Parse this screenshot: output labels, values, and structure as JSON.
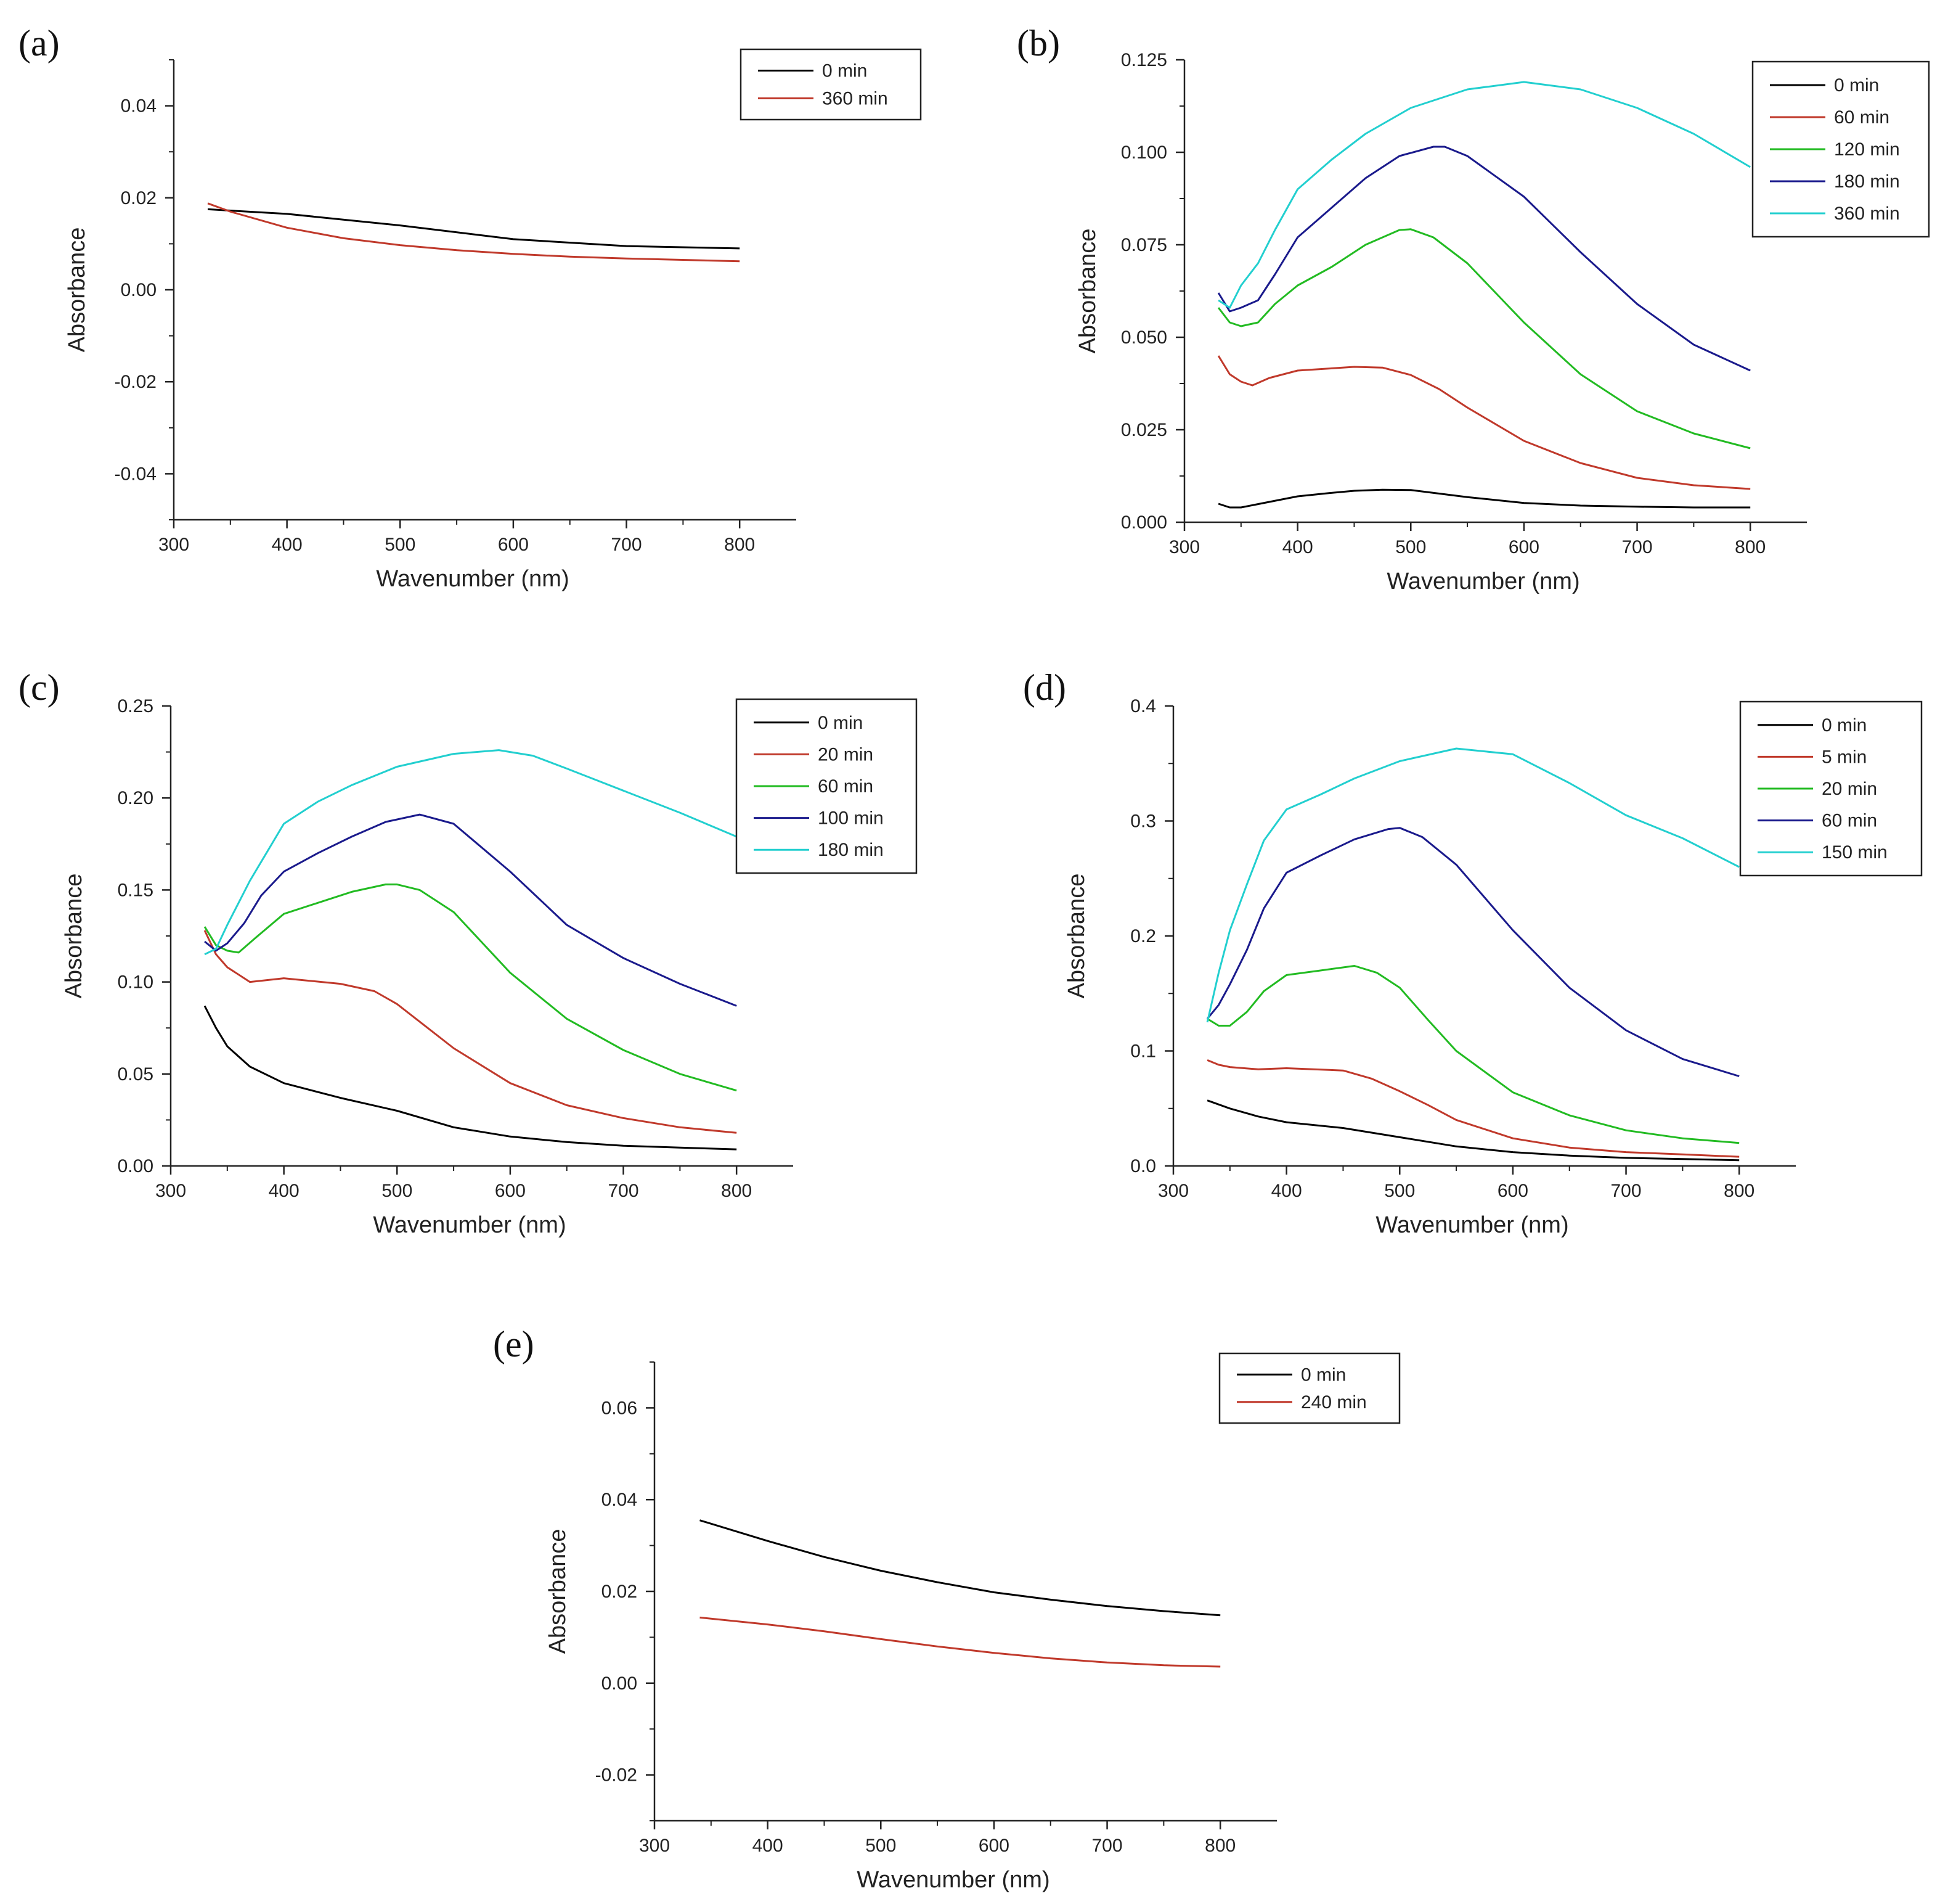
{
  "chart_data": [
    {
      "panel": "(a)",
      "type": "line",
      "xlabel": "Wavenumber (nm)",
      "ylabel": "Absorbance",
      "xlim": [
        300,
        850
      ],
      "ylim": [
        -0.05,
        0.05
      ],
      "xticks": [
        300,
        400,
        500,
        600,
        700,
        800
      ],
      "xtick_labels": [
        "300",
        "400",
        "500",
        "600",
        "700",
        "800"
      ],
      "yticks": [
        -0.04,
        -0.02,
        0,
        0.02,
        0.04
      ],
      "ytick_labels": [
        "-0.04",
        "-0.02",
        "0.00",
        "0.02",
        "0.04"
      ],
      "legend_position": "top-right",
      "series": [
        {
          "name": "0 min",
          "color": "#000000",
          "x": [
            330,
            400,
            500,
            600,
            700,
            800
          ],
          "y": [
            0.0175,
            0.0165,
            0.014,
            0.011,
            0.0095,
            0.009
          ]
        },
        {
          "name": "360 min",
          "color": "#c0392b",
          "x": [
            330,
            350,
            400,
            450,
            500,
            550,
            600,
            650,
            700,
            750,
            800
          ],
          "y": [
            0.0188,
            0.017,
            0.0135,
            0.0112,
            0.0097,
            0.0086,
            0.0078,
            0.0072,
            0.0068,
            0.0065,
            0.0062
          ]
        }
      ]
    },
    {
      "panel": "(b)",
      "type": "line",
      "xlabel": "Wavenumber (nm)",
      "ylabel": "Absorbance",
      "xlim": [
        300,
        850
      ],
      "ylim": [
        0,
        0.125
      ],
      "xticks": [
        300,
        400,
        500,
        600,
        700,
        800
      ],
      "xtick_labels": [
        "300",
        "400",
        "500",
        "600",
        "700",
        "800"
      ],
      "yticks": [
        0,
        0.025,
        0.05,
        0.075,
        0.1,
        0.125
      ],
      "ytick_labels": [
        "0.000",
        "0.025",
        "0.050",
        "0.075",
        "0.100",
        "0.125"
      ],
      "legend_position": "top-right",
      "series": [
        {
          "name": "0 min",
          "color": "#000000",
          "x": [
            330,
            340,
            350,
            375,
            400,
            425,
            450,
            475,
            500,
            550,
            600,
            650,
            700,
            750,
            800
          ],
          "y": [
            0.005,
            0.004,
            0.004,
            0.0055,
            0.007,
            0.0078,
            0.0085,
            0.0088,
            0.0087,
            0.0068,
            0.0052,
            0.0045,
            0.0042,
            0.004,
            0.004
          ]
        },
        {
          "name": "60 min",
          "color": "#c0392b",
          "x": [
            330,
            340,
            350,
            360,
            375,
            400,
            450,
            475,
            500,
            525,
            550,
            600,
            650,
            700,
            750,
            800
          ],
          "y": [
            0.045,
            0.04,
            0.038,
            0.037,
            0.039,
            0.041,
            0.042,
            0.0418,
            0.0398,
            0.036,
            0.031,
            0.022,
            0.016,
            0.012,
            0.01,
            0.009
          ]
        },
        {
          "name": "120 min",
          "color": "#22bb22",
          "x": [
            330,
            340,
            350,
            365,
            380,
            400,
            430,
            460,
            490,
            500,
            520,
            550,
            600,
            650,
            700,
            750,
            800
          ],
          "y": [
            0.058,
            0.054,
            0.053,
            0.054,
            0.059,
            0.064,
            0.069,
            0.075,
            0.079,
            0.0792,
            0.077,
            0.07,
            0.054,
            0.04,
            0.03,
            0.024,
            0.02
          ]
        },
        {
          "name": "180 min",
          "color": "#1a1a8c",
          "x": [
            330,
            340,
            350,
            365,
            380,
            400,
            430,
            460,
            490,
            520,
            530,
            550,
            600,
            650,
            700,
            750,
            800
          ],
          "y": [
            0.062,
            0.057,
            0.058,
            0.06,
            0.067,
            0.077,
            0.085,
            0.093,
            0.099,
            0.1015,
            0.1015,
            0.099,
            0.088,
            0.073,
            0.059,
            0.048,
            0.041
          ]
        },
        {
          "name": "360 min",
          "color": "#22cfcf",
          "x": [
            330,
            340,
            350,
            365,
            380,
            400,
            430,
            460,
            500,
            550,
            600,
            650,
            700,
            750,
            800
          ],
          "y": [
            0.06,
            0.058,
            0.064,
            0.07,
            0.079,
            0.09,
            0.098,
            0.105,
            0.112,
            0.117,
            0.119,
            0.117,
            0.112,
            0.105,
            0.096
          ]
        }
      ]
    },
    {
      "panel": "(c)",
      "type": "line",
      "xlabel": "Wavenumber (nm)",
      "ylabel": "Absorbance",
      "xlim": [
        300,
        850
      ],
      "ylim": [
        0,
        0.25
      ],
      "xticks": [
        300,
        400,
        500,
        600,
        700,
        800
      ],
      "xtick_labels": [
        "300",
        "400",
        "500",
        "600",
        "700",
        "800"
      ],
      "yticks": [
        0,
        0.05,
        0.1,
        0.15,
        0.2,
        0.25
      ],
      "ytick_labels": [
        "0.00",
        "0.05",
        "0.10",
        "0.15",
        "0.20",
        "0.25"
      ],
      "legend_position": "top-right",
      "series": [
        {
          "name": "0 min",
          "color": "#000000",
          "x": [
            330,
            340,
            350,
            370,
            400,
            450,
            500,
            550,
            600,
            650,
            700,
            750,
            800
          ],
          "y": [
            0.087,
            0.075,
            0.065,
            0.054,
            0.045,
            0.037,
            0.03,
            0.021,
            0.016,
            0.013,
            0.011,
            0.01,
            0.009
          ]
        },
        {
          "name": "20 min",
          "color": "#c0392b",
          "x": [
            330,
            340,
            350,
            370,
            400,
            450,
            480,
            500,
            525,
            550,
            600,
            650,
            700,
            750,
            800
          ],
          "y": [
            0.128,
            0.115,
            0.108,
            0.1,
            0.102,
            0.099,
            0.095,
            0.088,
            0.076,
            0.064,
            0.045,
            0.033,
            0.026,
            0.021,
            0.018
          ]
        },
        {
          "name": "60 min",
          "color": "#22bb22",
          "x": [
            330,
            340,
            350,
            360,
            375,
            400,
            430,
            460,
            490,
            500,
            520,
            550,
            600,
            650,
            700,
            750,
            800
          ],
          "y": [
            0.13,
            0.12,
            0.117,
            0.116,
            0.124,
            0.137,
            0.143,
            0.149,
            0.153,
            0.153,
            0.15,
            0.138,
            0.105,
            0.08,
            0.063,
            0.05,
            0.041
          ]
        },
        {
          "name": "100 min",
          "color": "#1a1a8c",
          "x": [
            330,
            340,
            350,
            365,
            380,
            400,
            430,
            460,
            490,
            520,
            550,
            600,
            650,
            700,
            750,
            800
          ],
          "y": [
            0.122,
            0.117,
            0.121,
            0.132,
            0.147,
            0.16,
            0.17,
            0.179,
            0.187,
            0.191,
            0.186,
            0.16,
            0.131,
            0.113,
            0.099,
            0.087
          ]
        },
        {
          "name": "180 min",
          "color": "#22cfcf",
          "x": [
            330,
            340,
            350,
            370,
            400,
            430,
            460,
            500,
            550,
            590,
            620,
            650,
            700,
            750,
            800
          ],
          "y": [
            0.115,
            0.118,
            0.131,
            0.155,
            0.186,
            0.198,
            0.207,
            0.217,
            0.224,
            0.226,
            0.223,
            0.216,
            0.204,
            0.192,
            0.179
          ]
        }
      ]
    },
    {
      "panel": "(d)",
      "type": "line",
      "xlabel": "Wavenumber (nm)",
      "ylabel": "Absorbance",
      "xlim": [
        300,
        850
      ],
      "ylim": [
        0,
        0.4
      ],
      "xticks": [
        300,
        400,
        500,
        600,
        700,
        800
      ],
      "xtick_labels": [
        "300",
        "400",
        "500",
        "600",
        "700",
        "800"
      ],
      "yticks": [
        0,
        0.1,
        0.2,
        0.3,
        0.4
      ],
      "ytick_labels": [
        "0.0",
        "0.1",
        "0.2",
        "0.3",
        "0.4"
      ],
      "legend_position": "top-right",
      "series": [
        {
          "name": "0 min",
          "color": "#000000",
          "x": [
            330,
            350,
            375,
            400,
            450,
            500,
            550,
            600,
            650,
            700,
            750,
            800
          ],
          "y": [
            0.057,
            0.05,
            0.043,
            0.038,
            0.033,
            0.025,
            0.017,
            0.012,
            0.009,
            0.007,
            0.006,
            0.005
          ]
        },
        {
          "name": "5 min",
          "color": "#c0392b",
          "x": [
            330,
            340,
            350,
            375,
            400,
            450,
            475,
            500,
            525,
            550,
            600,
            650,
            700,
            750,
            800
          ],
          "y": [
            0.092,
            0.088,
            0.086,
            0.084,
            0.085,
            0.083,
            0.076,
            0.065,
            0.053,
            0.04,
            0.024,
            0.016,
            0.012,
            0.01,
            0.008
          ]
        },
        {
          "name": "20 min",
          "color": "#22bb22",
          "x": [
            330,
            340,
            350,
            365,
            380,
            400,
            430,
            460,
            480,
            500,
            525,
            550,
            600,
            650,
            700,
            750,
            800
          ],
          "y": [
            0.128,
            0.122,
            0.122,
            0.134,
            0.152,
            0.166,
            0.17,
            0.174,
            0.168,
            0.155,
            0.127,
            0.1,
            0.064,
            0.044,
            0.031,
            0.024,
            0.02
          ]
        },
        {
          "name": "60 min",
          "color": "#1a1a8c",
          "x": [
            330,
            340,
            350,
            365,
            380,
            400,
            430,
            460,
            490,
            500,
            520,
            550,
            600,
            650,
            700,
            750,
            800
          ],
          "y": [
            0.128,
            0.14,
            0.158,
            0.188,
            0.224,
            0.255,
            0.27,
            0.284,
            0.293,
            0.294,
            0.286,
            0.262,
            0.205,
            0.155,
            0.118,
            0.093,
            0.078
          ]
        },
        {
          "name": "150 min",
          "color": "#22cfcf",
          "x": [
            330,
            340,
            350,
            365,
            380,
            400,
            430,
            460,
            500,
            550,
            600,
            650,
            700,
            750,
            800
          ],
          "y": [
            0.125,
            0.168,
            0.205,
            0.245,
            0.283,
            0.31,
            0.323,
            0.337,
            0.352,
            0.363,
            0.358,
            0.333,
            0.305,
            0.285,
            0.26
          ]
        }
      ]
    },
    {
      "panel": "(e)",
      "type": "line",
      "xlabel": "Wavenumber (nm)",
      "ylabel": "Absorbance",
      "xlim": [
        300,
        850
      ],
      "ylim": [
        -0.03,
        0.07
      ],
      "xticks": [
        300,
        400,
        500,
        600,
        700,
        800
      ],
      "xtick_labels": [
        "300",
        "400",
        "500",
        "600",
        "700",
        "800"
      ],
      "yticks": [
        -0.02,
        0,
        0.02,
        0.04,
        0.06
      ],
      "ytick_labels": [
        "-0.02",
        "0.00",
        "0.02",
        "0.04",
        "0.06"
      ],
      "legend_position": "top-right",
      "series": [
        {
          "name": "0 min",
          "color": "#000000",
          "x": [
            340,
            400,
            450,
            500,
            550,
            600,
            650,
            700,
            750,
            800
          ],
          "y": [
            0.0355,
            0.031,
            0.0275,
            0.0245,
            0.022,
            0.0198,
            0.0182,
            0.0168,
            0.0157,
            0.0148
          ]
        },
        {
          "name": "240 min",
          "color": "#c0392b",
          "x": [
            340,
            400,
            450,
            500,
            550,
            600,
            650,
            700,
            750,
            800
          ],
          "y": [
            0.0143,
            0.0128,
            0.0113,
            0.0096,
            0.008,
            0.0066,
            0.0054,
            0.0045,
            0.0039,
            0.0036
          ]
        }
      ]
    }
  ]
}
